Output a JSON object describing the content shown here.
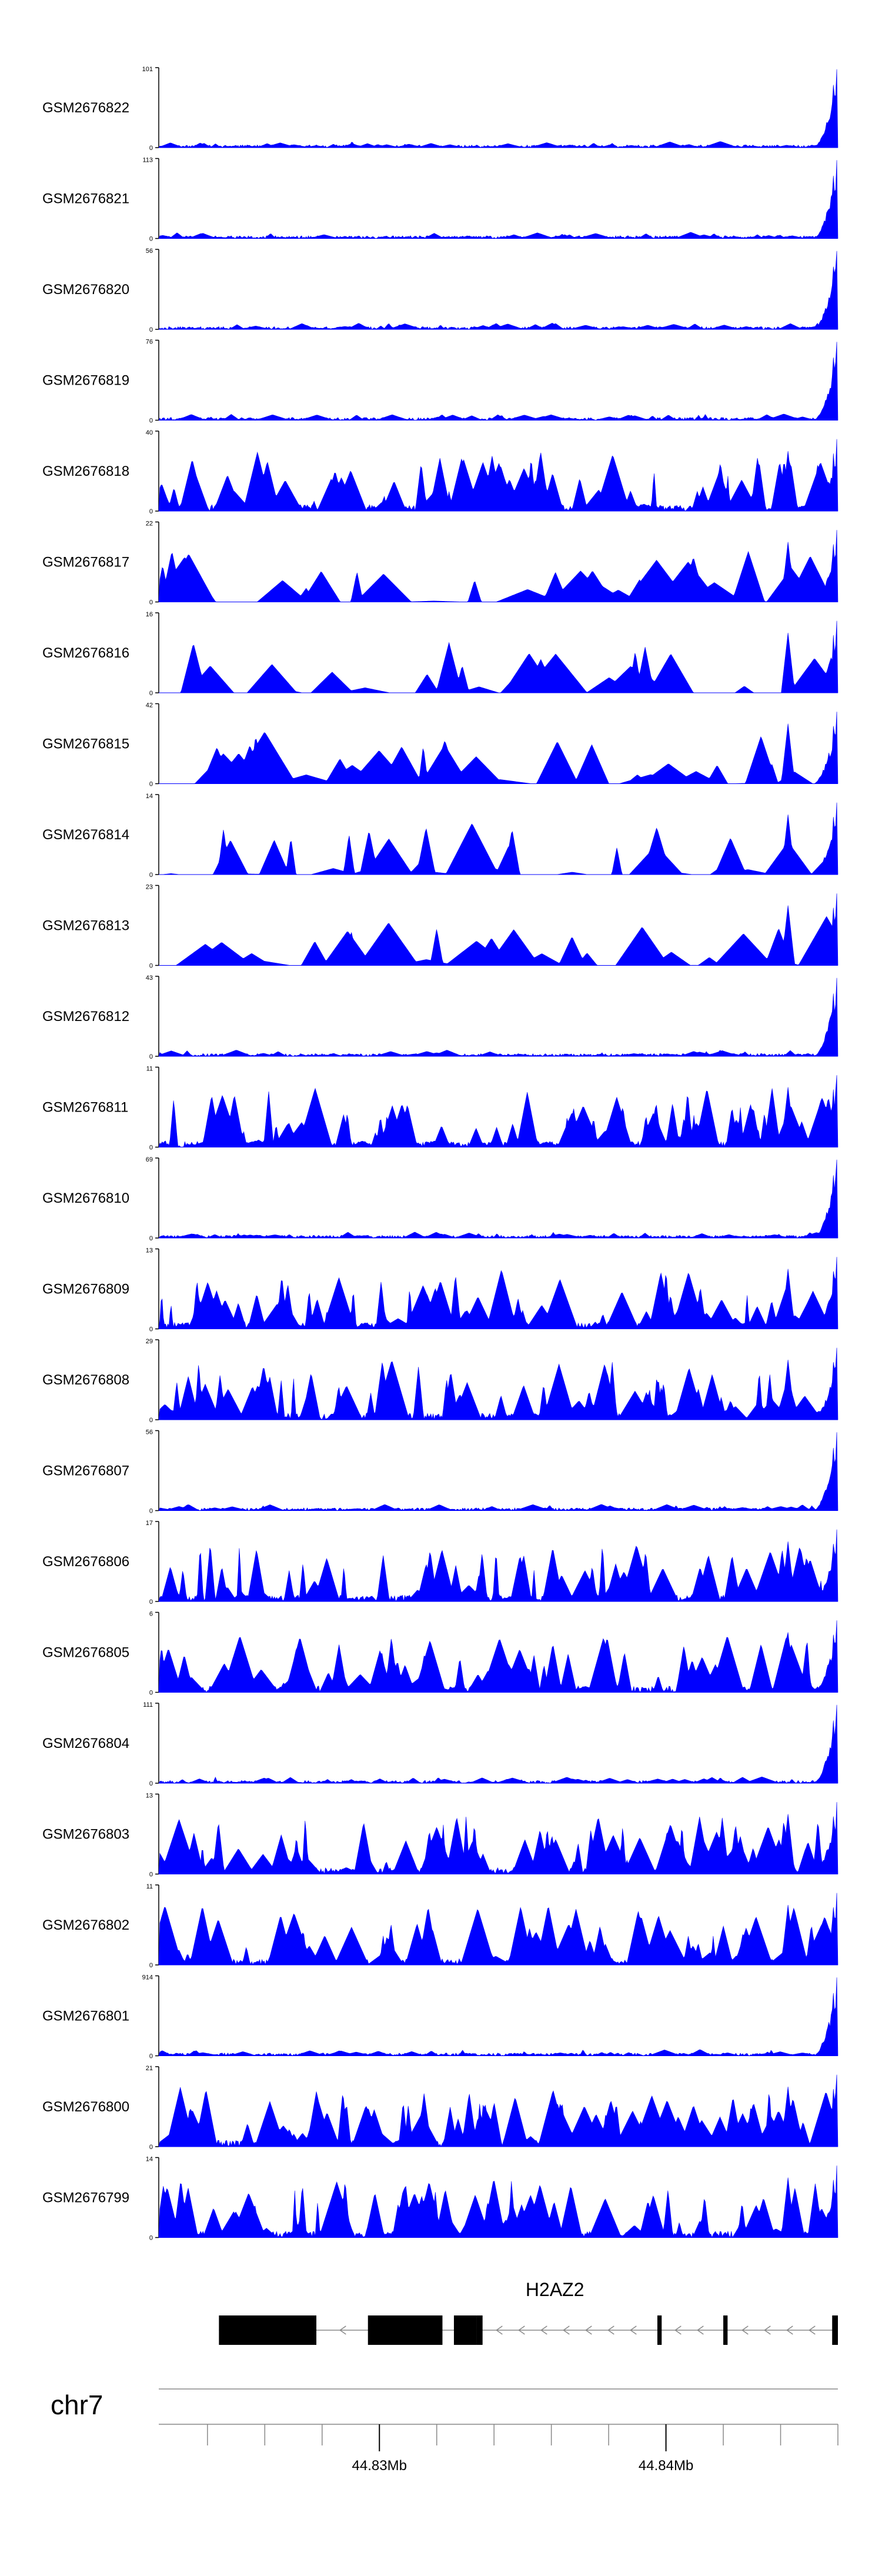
{
  "chart_data": {
    "type": "area",
    "color": "#0000ff",
    "tracks": [
      {
        "name": "GSM2676822",
        "ymax": 101,
        "ymin": 0
      },
      {
        "name": "GSM2676821",
        "ymax": 113,
        "ymin": 0
      },
      {
        "name": "GSM2676820",
        "ymax": 56,
        "ymin": 0
      },
      {
        "name": "GSM2676819",
        "ymax": 76,
        "ymin": 0
      },
      {
        "name": "GSM2676818",
        "ymax": 40,
        "ymin": 0
      },
      {
        "name": "GSM2676817",
        "ymax": 22,
        "ymin": 0
      },
      {
        "name": "GSM2676816",
        "ymax": 16,
        "ymin": 0
      },
      {
        "name": "GSM2676815",
        "ymax": 42,
        "ymin": 0
      },
      {
        "name": "GSM2676814",
        "ymax": 14,
        "ymin": 0
      },
      {
        "name": "GSM2676813",
        "ymax": 23,
        "ymin": 0
      },
      {
        "name": "GSM2676812",
        "ymax": 43,
        "ymin": 0
      },
      {
        "name": "GSM2676811",
        "ymax": 11,
        "ymin": 0
      },
      {
        "name": "GSM2676810",
        "ymax": 69,
        "ymin": 0
      },
      {
        "name": "GSM2676809",
        "ymax": 13,
        "ymin": 0
      },
      {
        "name": "GSM2676808",
        "ymax": 29,
        "ymin": 0
      },
      {
        "name": "GSM2676807",
        "ymax": 56,
        "ymin": 0
      },
      {
        "name": "GSM2676806",
        "ymax": 17,
        "ymin": 0
      },
      {
        "name": "GSM2676805",
        "ymax": 6,
        "ymin": 0
      },
      {
        "name": "GSM2676804",
        "ymax": 111,
        "ymin": 0
      },
      {
        "name": "GSM2676803",
        "ymax": 13,
        "ymin": 0
      },
      {
        "name": "GSM2676802",
        "ymax": 11,
        "ymin": 0
      },
      {
        "name": "GSM2676801",
        "ymax": 914,
        "ymin": 0
      },
      {
        "name": "GSM2676800",
        "ymax": 21,
        "ymin": 0
      },
      {
        "name": "GSM2676799",
        "ymax": 14,
        "ymin": 0
      }
    ],
    "xlim_mb": [
      44.8223,
      44.846
    ],
    "gene": {
      "name": "H2AZ2",
      "strand": "-",
      "start_mb": 44.8244,
      "end_mb": 44.846,
      "exons_mb": [
        [
          44.8244,
          44.8278
        ],
        [
          44.8296,
          44.8322
        ],
        [
          44.8326,
          44.8334
        ],
        [
          44.8334,
          44.8336
        ],
        [
          44.8397,
          44.83985
        ],
        [
          44.842,
          44.84215
        ],
        [
          44.8458,
          44.846
        ]
      ]
    },
    "chromosome": "chr7",
    "axis_ticks_mb": [
      44.822,
      44.824,
      44.826,
      44.828,
      44.83,
      44.832,
      44.834,
      44.836,
      44.838,
      44.84,
      44.842,
      44.844,
      44.846
    ],
    "axis_labels": [
      "44.83Mb",
      "44.84Mb"
    ],
    "axis_label_values_mb": [
      44.83,
      44.84
    ]
  }
}
